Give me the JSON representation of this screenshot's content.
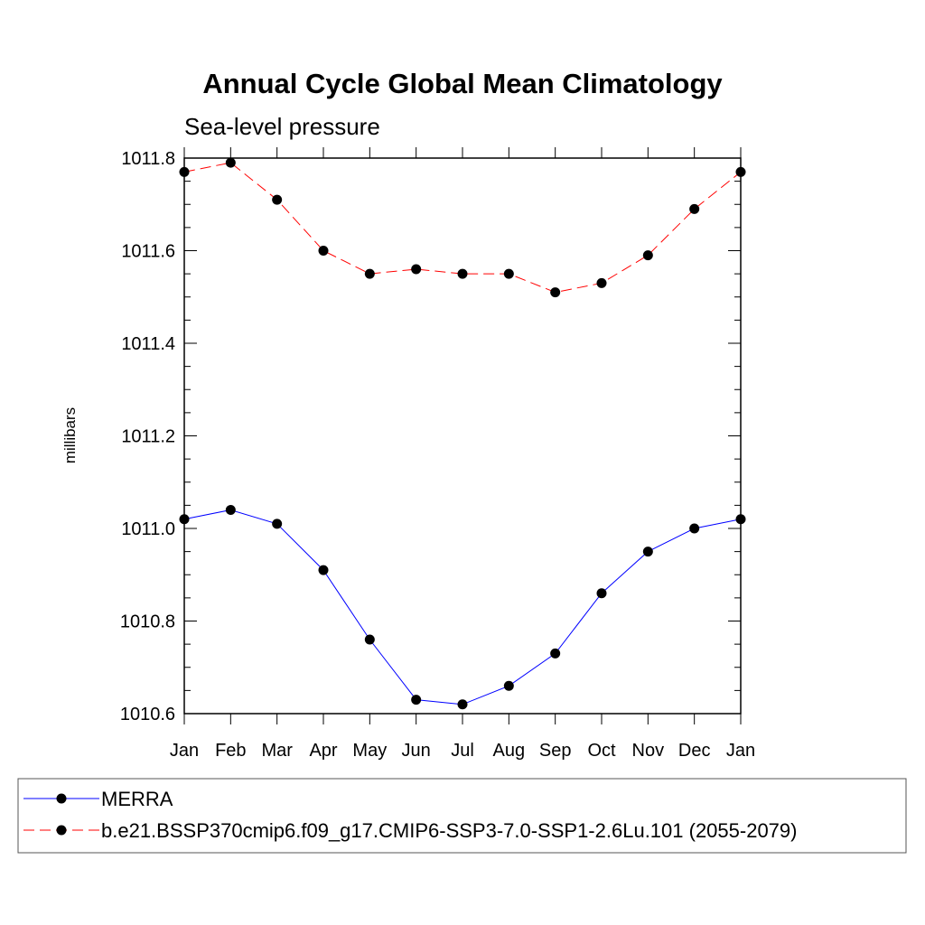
{
  "chart_data": {
    "type": "line",
    "title": "Annual Cycle Global Mean Climatology",
    "subtitle": "Sea-level pressure",
    "xlabel": "",
    "ylabel": "millibars",
    "categories": [
      "Jan",
      "Feb",
      "Mar",
      "Apr",
      "May",
      "Jun",
      "Jul",
      "Aug",
      "Sep",
      "Oct",
      "Nov",
      "Dec",
      "Jan"
    ],
    "ylim": [
      1010.6,
      1011.8
    ],
    "yticks": [
      "1010.6",
      "1010.8",
      "1011.0",
      "1011.2",
      "1011.4",
      "1011.6",
      "1011.8"
    ],
    "grid": false,
    "legend_position": "bottom",
    "series": [
      {
        "name": "MERRA",
        "color": "#0000ff",
        "line_style": "solid",
        "marker": "circle",
        "values": [
          1011.02,
          1011.04,
          1011.01,
          1010.91,
          1010.76,
          1010.63,
          1010.62,
          1010.66,
          1010.73,
          1010.86,
          1010.95,
          1011.0,
          1011.02
        ]
      },
      {
        "name": "b.e21.BSSP370cmip6.f09_g17.CMIP6-SSP3-7.0-SSP1-2.6Lu.101 (2055-2079)",
        "color": "#ff0000",
        "line_style": "dashed",
        "marker": "circle",
        "values": [
          1011.77,
          1011.79,
          1011.71,
          1011.6,
          1011.55,
          1011.56,
          1011.55,
          1011.55,
          1011.51,
          1011.53,
          1011.59,
          1011.69,
          1011.77
        ]
      }
    ]
  }
}
